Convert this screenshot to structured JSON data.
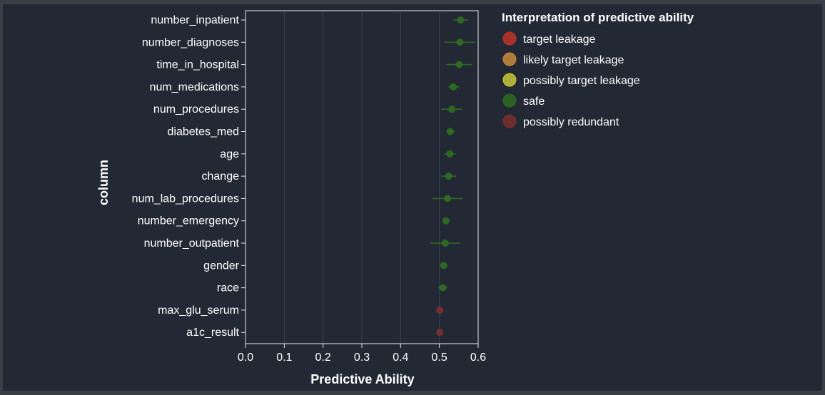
{
  "chart_data": {
    "type": "scatter",
    "subtype": "point-with-error-bars",
    "xlabel": "Predictive Ability",
    "ylabel": "column",
    "xlim": [
      0,
      0.6
    ],
    "xticks": [
      "0.0",
      "0.1",
      "0.2",
      "0.3",
      "0.4",
      "0.5",
      "0.6"
    ],
    "xtick_values": [
      0,
      0.1,
      0.2,
      0.3,
      0.4,
      0.5,
      0.6
    ],
    "grid": true,
    "legend_position": "right",
    "legend": {
      "title": "Interpretation of predictive ability",
      "items": [
        {
          "label": "target leakage",
          "color": "#c0332b"
        },
        {
          "label": "likely target leakage",
          "color": "#c9883a"
        },
        {
          "label": "possibly target leakage",
          "color": "#c7c73a"
        },
        {
          "label": "safe",
          "color": "#2f6a22"
        },
        {
          "label": "possibly redundant",
          "color": "#7a2e2e"
        }
      ]
    },
    "points": [
      {
        "column": "number_inpatient",
        "value": 0.555,
        "low": 0.535,
        "high": 0.575,
        "category": "safe"
      },
      {
        "column": "number_diagnoses",
        "value": 0.553,
        "low": 0.513,
        "high": 0.593,
        "category": "safe"
      },
      {
        "column": "time_in_hospital",
        "value": 0.551,
        "low": 0.518,
        "high": 0.584,
        "category": "safe"
      },
      {
        "column": "num_medications",
        "value": 0.536,
        "low": 0.522,
        "high": 0.551,
        "category": "safe"
      },
      {
        "column": "num_procedures",
        "value": 0.532,
        "low": 0.505,
        "high": 0.558,
        "category": "safe"
      },
      {
        "column": "diabetes_med",
        "value": 0.528,
        "low": 0.518,
        "high": 0.539,
        "category": "safe"
      },
      {
        "column": "age",
        "value": 0.527,
        "low": 0.512,
        "high": 0.542,
        "category": "safe"
      },
      {
        "column": "change",
        "value": 0.524,
        "low": 0.505,
        "high": 0.543,
        "category": "safe"
      },
      {
        "column": "num_lab_procedures",
        "value": 0.521,
        "low": 0.482,
        "high": 0.56,
        "category": "safe"
      },
      {
        "column": "number_emergency",
        "value": 0.517,
        "low": 0.508,
        "high": 0.527,
        "category": "safe"
      },
      {
        "column": "number_outpatient",
        "value": 0.515,
        "low": 0.476,
        "high": 0.554,
        "category": "safe"
      },
      {
        "column": "gender",
        "value": 0.511,
        "low": 0.504,
        "high": 0.517,
        "category": "safe"
      },
      {
        "column": "race",
        "value": 0.509,
        "low": 0.497,
        "high": 0.52,
        "category": "safe"
      },
      {
        "column": "max_glu_serum",
        "value": 0.501,
        "low": 0.501,
        "high": 0.501,
        "category": "possibly redundant"
      },
      {
        "column": "a1c_result",
        "value": 0.501,
        "low": 0.501,
        "high": 0.501,
        "category": "possibly redundant"
      }
    ]
  }
}
